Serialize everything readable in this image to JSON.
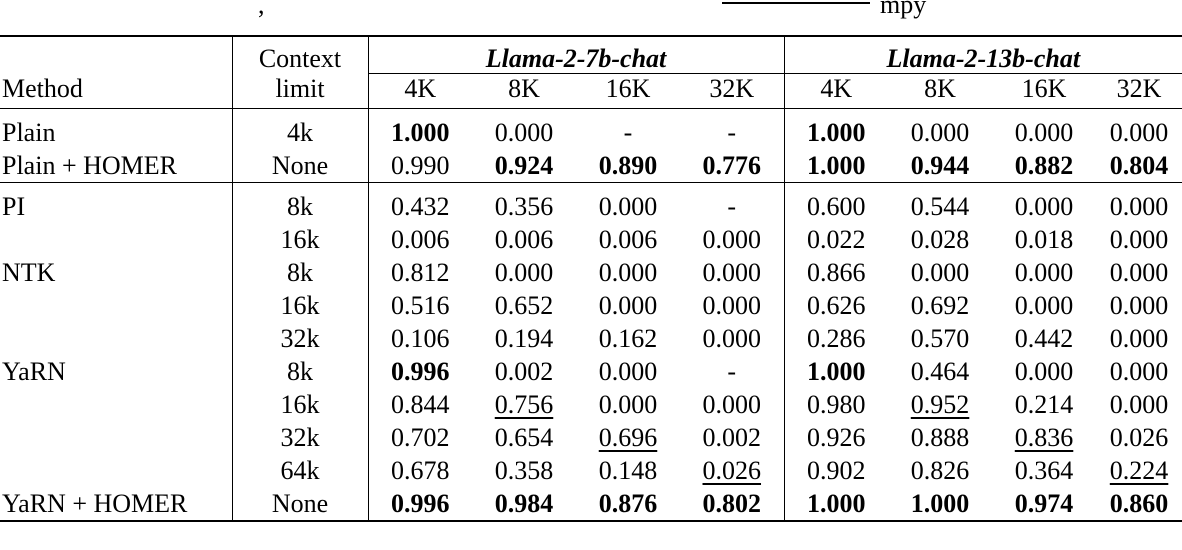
{
  "caption_fragment": {
    "before": ",",
    "after": "mpy"
  },
  "header": {
    "method_label": "Method",
    "context_label_line1": "Context",
    "context_label_line2": "limit",
    "group_a": "Llama-2-7b-chat",
    "group_b": "Llama-2-13b-chat",
    "lengths": [
      "4K",
      "8K",
      "16K",
      "32K",
      "4K",
      "8K",
      "16K",
      "32K"
    ]
  },
  "rows": [
    {
      "method": "Plain",
      "ctx": "4k",
      "vals": [
        "1.000",
        "0.000",
        "-",
        "-",
        "1.000",
        "0.000",
        "0.000",
        "0.000"
      ],
      "bold": [
        0,
        4
      ],
      "under": []
    },
    {
      "method": "Plain + HOMER",
      "ctx": "None",
      "vals": [
        "0.990",
        "0.924",
        "0.890",
        "0.776",
        "1.000",
        "0.944",
        "0.882",
        "0.804"
      ],
      "bold": [
        1,
        2,
        3,
        4,
        5,
        6,
        7
      ],
      "under": []
    },
    {
      "method": "PI",
      "ctx": "8k",
      "vals": [
        "0.432",
        "0.356",
        "0.000",
        "-",
        "0.600",
        "0.544",
        "0.000",
        "0.000"
      ],
      "bold": [],
      "under": []
    },
    {
      "method": "",
      "ctx": "16k",
      "vals": [
        "0.006",
        "0.006",
        "0.006",
        "0.000",
        "0.022",
        "0.028",
        "0.018",
        "0.000"
      ],
      "bold": [],
      "under": []
    },
    {
      "method": "NTK",
      "ctx": "8k",
      "vals": [
        "0.812",
        "0.000",
        "0.000",
        "0.000",
        "0.866",
        "0.000",
        "0.000",
        "0.000"
      ],
      "bold": [],
      "under": []
    },
    {
      "method": "",
      "ctx": "16k",
      "vals": [
        "0.516",
        "0.652",
        "0.000",
        "0.000",
        "0.626",
        "0.692",
        "0.000",
        "0.000"
      ],
      "bold": [],
      "under": []
    },
    {
      "method": "",
      "ctx": "32k",
      "vals": [
        "0.106",
        "0.194",
        "0.162",
        "0.000",
        "0.286",
        "0.570",
        "0.442",
        "0.000"
      ],
      "bold": [],
      "under": []
    },
    {
      "method": "YaRN",
      "ctx": "8k",
      "vals": [
        "0.996",
        "0.002",
        "0.000",
        "-",
        "1.000",
        "0.464",
        "0.000",
        "0.000"
      ],
      "bold": [
        0,
        4
      ],
      "under": []
    },
    {
      "method": "",
      "ctx": "16k",
      "vals": [
        "0.844",
        "0.756",
        "0.000",
        "0.000",
        "0.980",
        "0.952",
        "0.214",
        "0.000"
      ],
      "bold": [],
      "under": [
        1,
        5
      ]
    },
    {
      "method": "",
      "ctx": "32k",
      "vals": [
        "0.702",
        "0.654",
        "0.696",
        "0.002",
        "0.926",
        "0.888",
        "0.836",
        "0.026"
      ],
      "bold": [],
      "under": [
        2,
        6
      ]
    },
    {
      "method": "",
      "ctx": "64k",
      "vals": [
        "0.678",
        "0.358",
        "0.148",
        "0.026",
        "0.902",
        "0.826",
        "0.364",
        "0.224"
      ],
      "bold": [],
      "under": [
        3,
        7
      ]
    },
    {
      "method": "YaRN + HOMER",
      "ctx": "None",
      "vals": [
        "0.996",
        "0.984",
        "0.876",
        "0.802",
        "1.000",
        "1.000",
        "0.974",
        "0.860"
      ],
      "bold": [
        0,
        1,
        2,
        3,
        4,
        5,
        6,
        7
      ],
      "under": []
    }
  ]
}
